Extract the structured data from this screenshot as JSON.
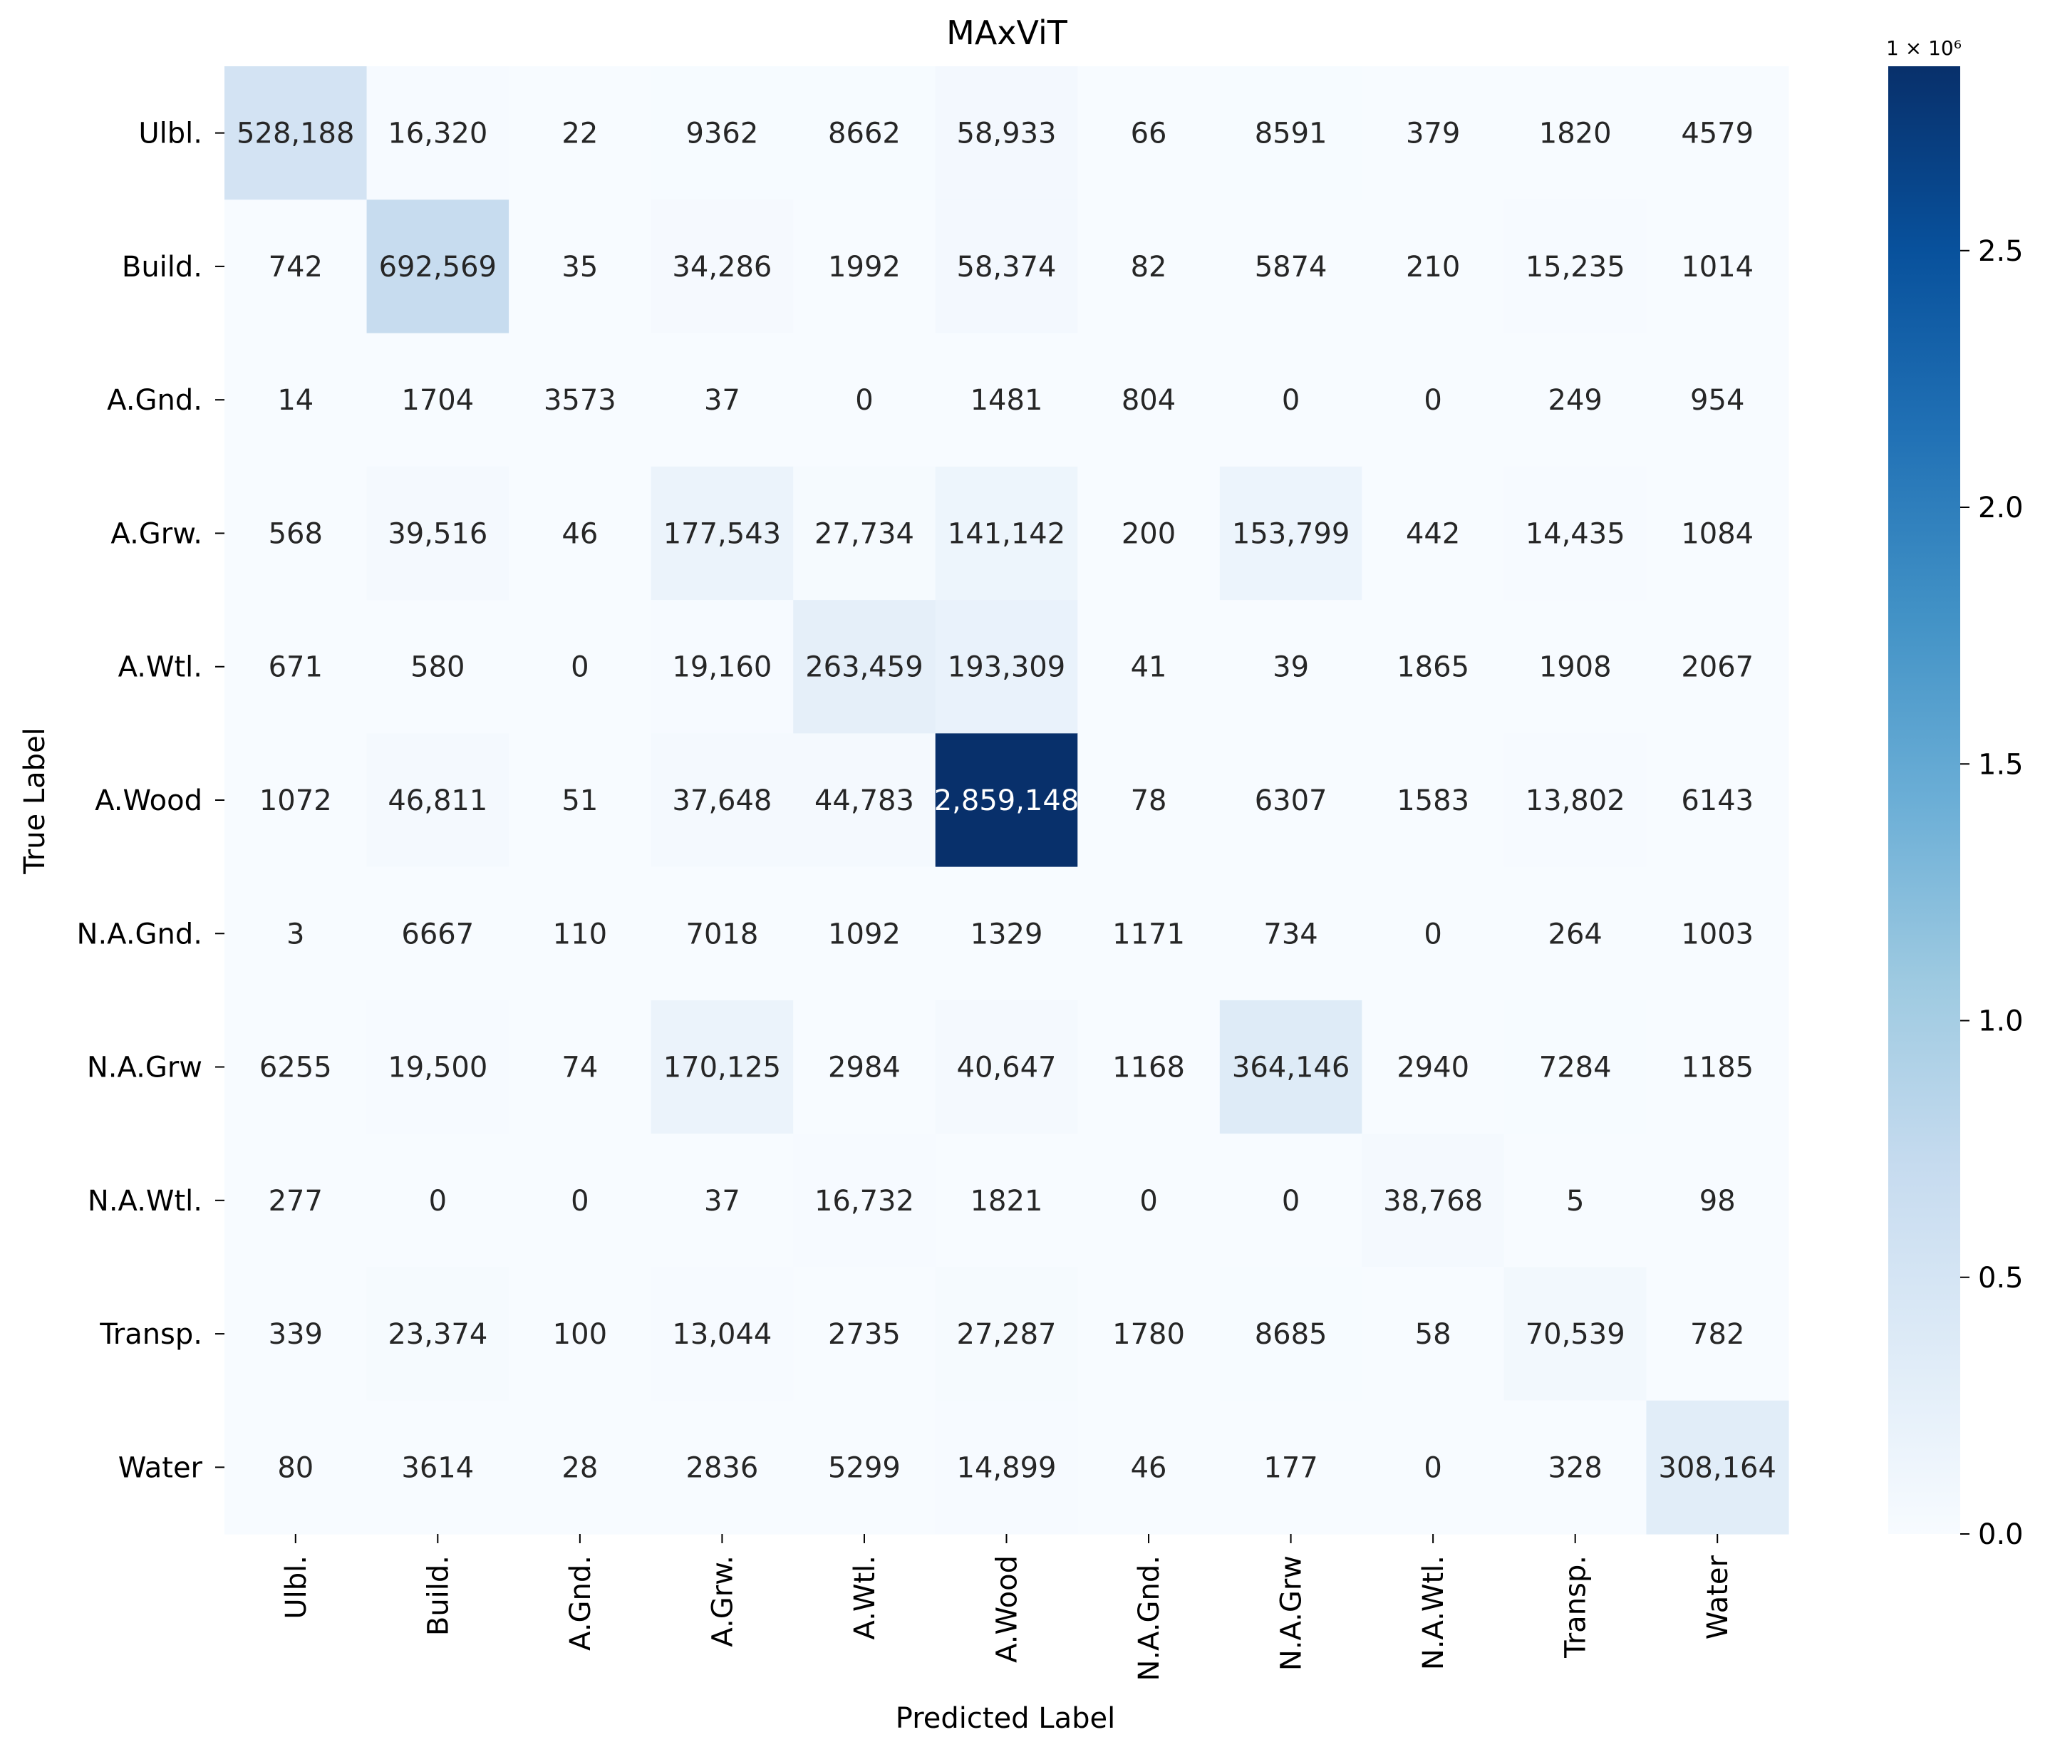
{
  "chart_data": {
    "type": "heatmap",
    "title": "MAxViT",
    "xlabel": "Predicted Label",
    "ylabel": "True Label",
    "categories": [
      "Ulbl.",
      "Build.",
      "A.Gnd.",
      "A.Grw.",
      "A.Wtl.",
      "A.Wood",
      "N.A.Gnd.",
      "N.A.Grw",
      "N.A.Wtl.",
      "Transp.",
      "Water"
    ],
    "matrix": [
      [
        528188,
        16320,
        22,
        9362,
        8662,
        58933,
        66,
        8591,
        379,
        1820,
        4579
      ],
      [
        742,
        692569,
        35,
        34286,
        1992,
        58374,
        82,
        5874,
        210,
        15235,
        1014
      ],
      [
        14,
        1704,
        3573,
        37,
        0,
        1481,
        804,
        0,
        0,
        249,
        954
      ],
      [
        568,
        39516,
        46,
        177543,
        27734,
        141142,
        200,
        153799,
        442,
        14435,
        1084
      ],
      [
        671,
        580,
        0,
        19160,
        263459,
        193309,
        41,
        39,
        1865,
        1908,
        2067
      ],
      [
        1072,
        46811,
        51,
        37648,
        44783,
        2859148,
        78,
        6307,
        1583,
        13802,
        6143
      ],
      [
        3,
        6667,
        110,
        7018,
        1092,
        1329,
        1171,
        734,
        0,
        264,
        1003
      ],
      [
        6255,
        19500,
        74,
        170125,
        2984,
        40647,
        1168,
        364146,
        2940,
        7284,
        1185
      ],
      [
        277,
        0,
        0,
        37,
        16732,
        1821,
        0,
        0,
        38768,
        5,
        98
      ],
      [
        339,
        23374,
        100,
        13044,
        2735,
        27287,
        1780,
        8685,
        58,
        70539,
        782
      ],
      [
        80,
        3614,
        28,
        2836,
        5299,
        14899,
        46,
        177,
        0,
        328,
        308164
      ]
    ],
    "colorbar": {
      "multiplier": "1 × 10⁶",
      "ticks": [
        "0.0",
        "0.5",
        "1.0",
        "1.5",
        "2.0",
        "2.5"
      ],
      "tick_values": [
        0,
        0.5,
        1.0,
        1.5,
        2.0,
        2.5
      ],
      "min": 0,
      "max": 2.859148,
      "colormap": "Blues"
    }
  }
}
